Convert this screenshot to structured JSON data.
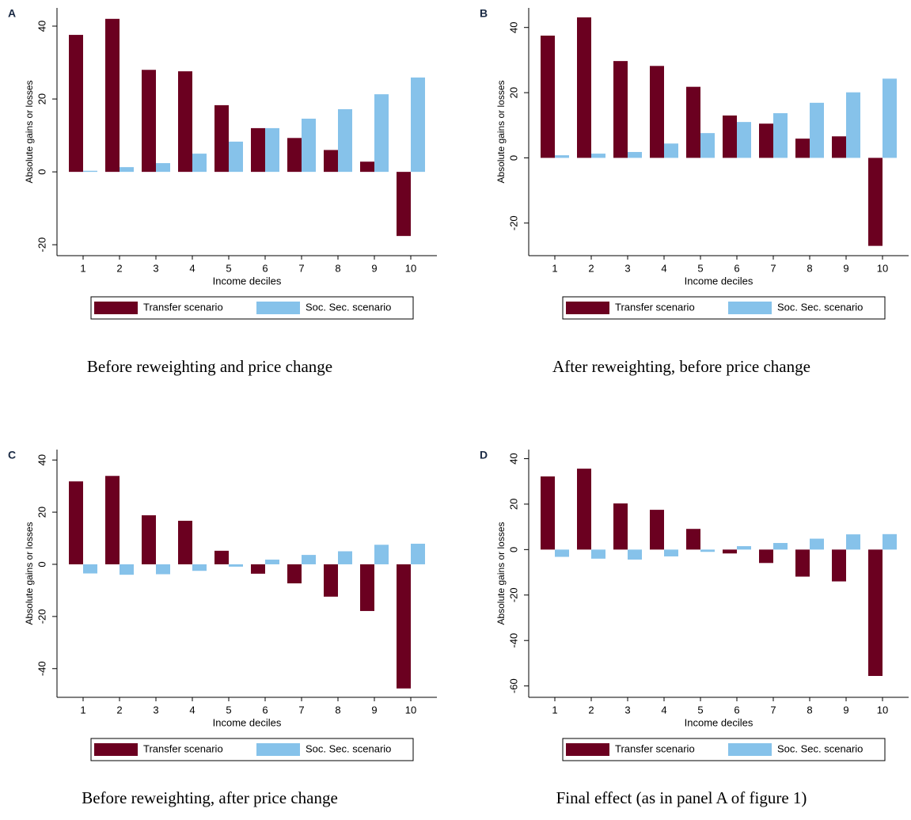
{
  "chart_data": [
    {
      "type": "bar",
      "panel": "A",
      "caption": "Before reweighting and price change",
      "x_label": "Income deciles",
      "y_label": "Absolute gains or losses",
      "categories": [
        "1",
        "2",
        "3",
        "4",
        "5",
        "6",
        "7",
        "8",
        "9",
        "10"
      ],
      "series": [
        {
          "name": "Transfer scenario",
          "color": "#6b0020",
          "values": [
            37.6,
            42,
            28,
            27.6,
            18.3,
            12,
            9.3,
            6,
            2.8,
            -17.6
          ]
        },
        {
          "name": "Soc. Sec. scenario",
          "color": "#86c2ea",
          "values": [
            0.3,
            1.3,
            2.4,
            5,
            8.3,
            12,
            14.6,
            17.2,
            21.3,
            25.9
          ]
        }
      ],
      "ylim": [
        -23,
        45
      ],
      "yticks": [
        -20,
        0,
        20,
        40
      ]
    },
    {
      "type": "bar",
      "panel": "B",
      "caption": "After reweighting, before price change",
      "x_label": "Income deciles",
      "y_label": "Absolute gains or losses",
      "categories": [
        "1",
        "2",
        "3",
        "4",
        "5",
        "6",
        "7",
        "8",
        "9",
        "10"
      ],
      "series": [
        {
          "name": "Transfer scenario",
          "color": "#6b0020",
          "values": [
            37.5,
            43.1,
            29.7,
            28.2,
            21.8,
            13,
            10.5,
            5.9,
            6.6,
            -27
          ]
        },
        {
          "name": "Soc. Sec. scenario",
          "color": "#86c2ea",
          "values": [
            0.8,
            1.3,
            1.8,
            4.4,
            7.6,
            11,
            13.7,
            16.9,
            20.1,
            24.3
          ]
        }
      ],
      "ylim": [
        -30,
        46
      ],
      "yticks": [
        -20,
        0,
        20,
        40
      ]
    },
    {
      "type": "bar",
      "panel": "C",
      "caption": "Before reweighting, after price change",
      "x_label": "Income deciles",
      "y_label": "Absolute gains or losses",
      "categories": [
        "1",
        "2",
        "3",
        "4",
        "5",
        "6",
        "7",
        "8",
        "9",
        "10"
      ],
      "series": [
        {
          "name": "Transfer scenario",
          "color": "#6b0020",
          "values": [
            31.8,
            33.9,
            18.8,
            16.7,
            5.2,
            -3.6,
            -7.3,
            -12.4,
            -17.9,
            -47.6
          ]
        },
        {
          "name": "Soc. Sec. scenario",
          "color": "#86c2ea",
          "values": [
            -3.5,
            -4,
            -3.8,
            -2.5,
            -0.9,
            1.8,
            3.6,
            5,
            7.5,
            7.9
          ]
        }
      ],
      "ylim": [
        -51,
        44
      ],
      "yticks": [
        -40,
        -20,
        0,
        20,
        40
      ]
    },
    {
      "type": "bar",
      "panel": "D",
      "caption": "Final effect (as in panel A of figure 1)",
      "x_label": "Income deciles",
      "y_label": "Absolute gains or losses",
      "categories": [
        "1",
        "2",
        "3",
        "4",
        "5",
        "6",
        "7",
        "8",
        "9",
        "10"
      ],
      "series": [
        {
          "name": "Transfer scenario",
          "color": "#6b0020",
          "values": [
            32.2,
            35.6,
            20.3,
            17.5,
            9.1,
            -1.7,
            -5.9,
            -11.9,
            -14,
            -55.6
          ]
        },
        {
          "name": "Soc. Sec. scenario",
          "color": "#86c2ea",
          "values": [
            -3.2,
            -4,
            -4.4,
            -3,
            -1,
            1.5,
            2.9,
            4.8,
            6.7,
            6.8
          ]
        }
      ],
      "ylim": [
        -65,
        44
      ],
      "yticks": [
        -60,
        -40,
        -20,
        0,
        20,
        40
      ]
    }
  ]
}
